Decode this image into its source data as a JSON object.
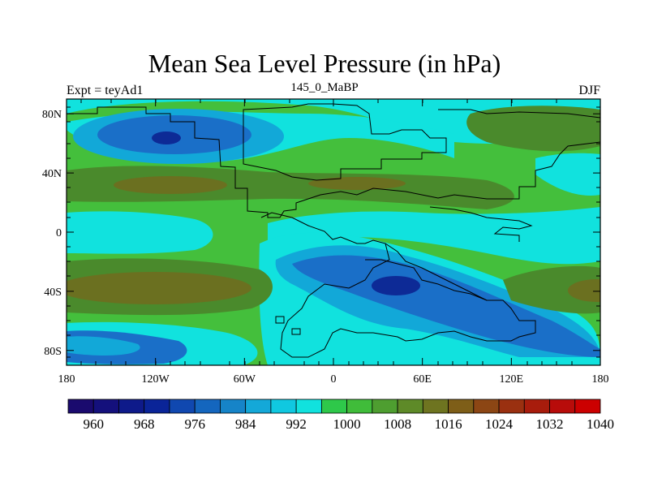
{
  "title": "Mean Sea Level Pressure (in hPa)",
  "left_label": "Expt = teyAd1",
  "center_label": "145_0_MaBP",
  "right_label": "DJF",
  "colors": {
    "ocean_low": "#1040b0",
    "bg_green": "#44bf3c",
    "cyan": "#11e2de",
    "sky": "#12a8d8",
    "blue": "#1a6fc8",
    "dark_blue": "#0d2a96",
    "olive": "#4a8a2c",
    "brown_olive": "#6b7020",
    "coast": "#000000"
  },
  "map": {
    "x_ticks": [
      "180",
      "120W",
      "60W",
      "0",
      "60E",
      "120E",
      "180"
    ],
    "y_ticks": [
      "80N",
      "40N",
      "0",
      "40S",
      "80S"
    ],
    "lon_range": [
      -180,
      180
    ],
    "lat_range": [
      -90,
      90
    ]
  },
  "colorbar": {
    "colors": [
      "#1a0a6e",
      "#14107c",
      "#0e1a8a",
      "#0a2498",
      "#1048b0",
      "#1466be",
      "#1684c8",
      "#14a8d8",
      "#10c8e0",
      "#11e2de",
      "#2ec84a",
      "#40bc3a",
      "#4e9e30",
      "#5e8a28",
      "#6e7420",
      "#7e5e18",
      "#8c4614",
      "#9a3010",
      "#a81c0c",
      "#b80c0a",
      "#cc0000"
    ],
    "labels": [
      "960",
      "968",
      "976",
      "984",
      "992",
      "1000",
      "1008",
      "1016",
      "1024",
      "1032",
      "1040"
    ],
    "label_every": 2
  }
}
